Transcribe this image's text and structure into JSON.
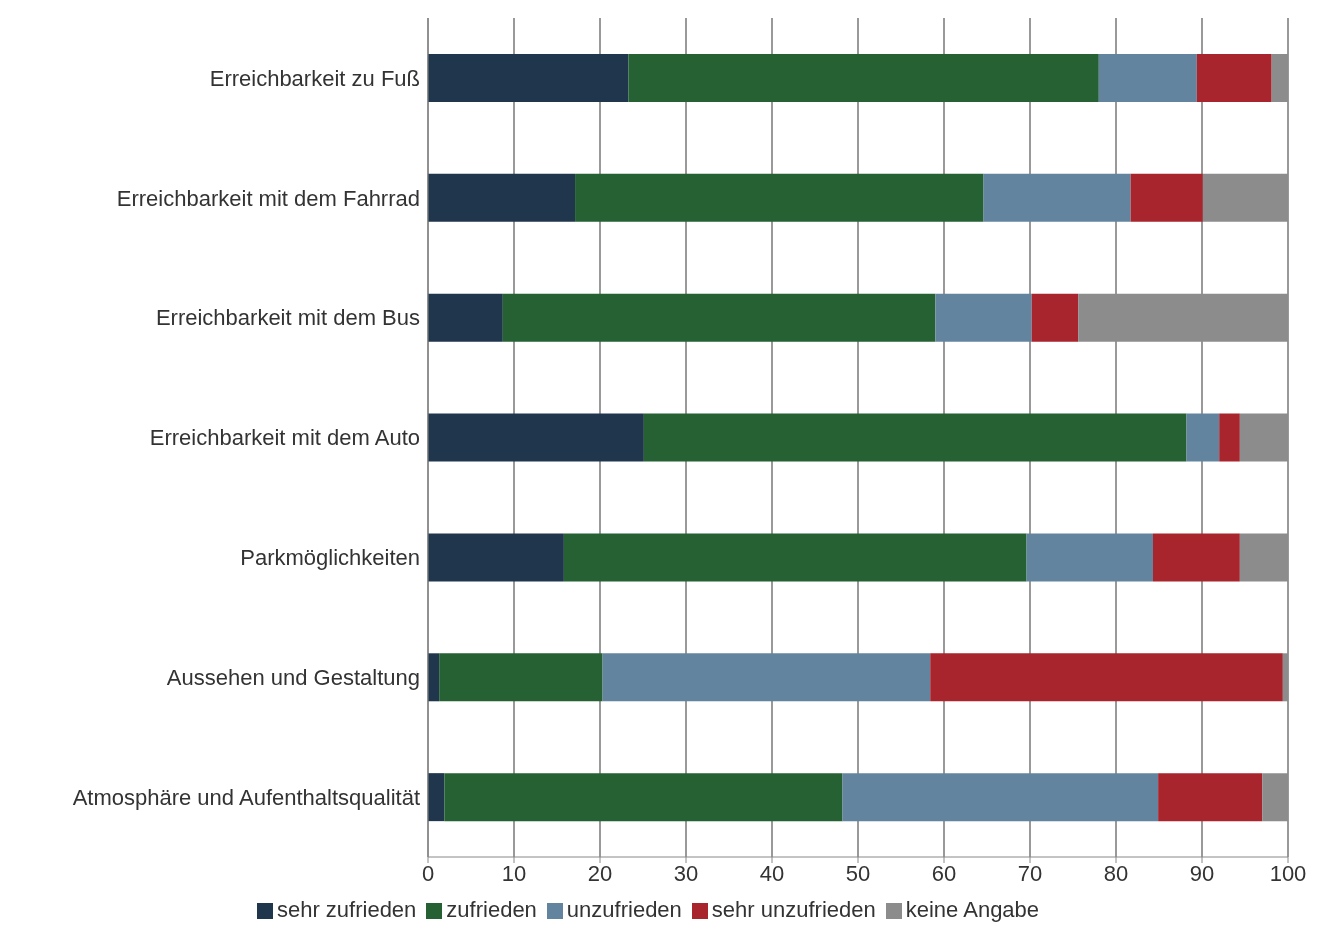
{
  "chart_data": {
    "type": "bar",
    "orientation": "horizontal",
    "stacked": true,
    "categories": [
      "Erreichbarkeit zu Fuß",
      "Erreichbarkeit mit dem Fahrrad",
      "Erreichbarkeit mit dem Bus",
      "Erreichbarkeit mit dem Auto",
      "Parkmöglichkeiten",
      "Aussehen und Gestaltung",
      "Atmosphäre und Aufenthaltsqualität"
    ],
    "series": [
      {
        "name": "sehr zufrieden",
        "color": "#1f364d",
        "values": [
          23.3,
          17.1,
          8.7,
          25.1,
          15.8,
          1.3,
          1.9
        ]
      },
      {
        "name": "zufrieden",
        "color": "#256132",
        "values": [
          54.7,
          47.5,
          50.3,
          63.1,
          53.8,
          19.0,
          46.3
        ]
      },
      {
        "name": "unzufrieden",
        "color": "#62849f",
        "values": [
          11.4,
          17.1,
          11.2,
          3.8,
          14.7,
          38.1,
          36.7
        ]
      },
      {
        "name": "sehr unzufrieden",
        "color": "#a8252d",
        "values": [
          8.7,
          8.4,
          5.4,
          2.4,
          10.1,
          41.0,
          12.1
        ]
      },
      {
        "name": "keine Angabe",
        "color": "#8c8c8c",
        "values": [
          1.9,
          9.9,
          24.4,
          5.6,
          5.6,
          0.6,
          3.0
        ]
      }
    ],
    "xlim": [
      0,
      100
    ],
    "xticks": [
      0,
      10,
      20,
      30,
      40,
      50,
      60,
      70,
      80,
      90,
      100
    ],
    "grid": "x",
    "legend": "bottom"
  }
}
